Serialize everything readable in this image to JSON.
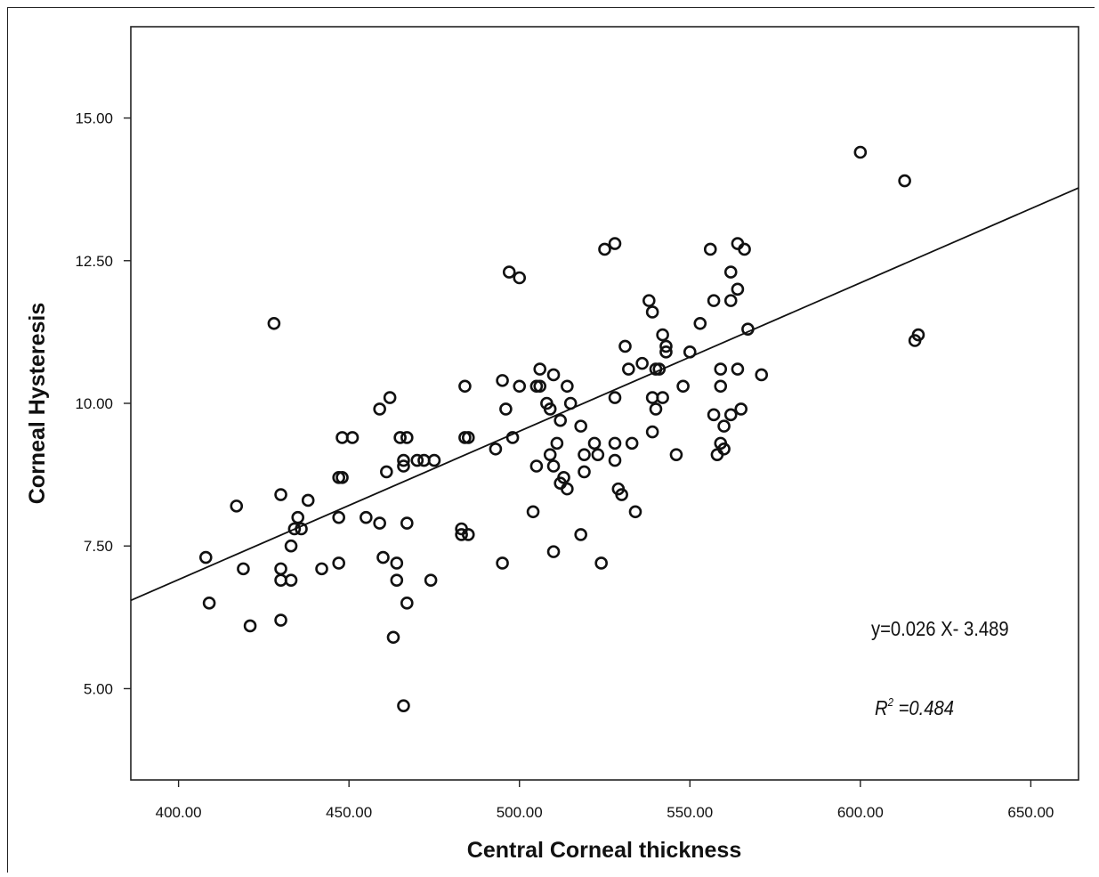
{
  "chart_data": {
    "type": "scatter",
    "xlabel": "Central Corneal thickness",
    "ylabel": "Corneal Hysteresis",
    "xlim": [
      386,
      664
    ],
    "ylim": [
      3.4,
      16.6
    ],
    "x_ticks": [
      400,
      450,
      500,
      550,
      600,
      650
    ],
    "y_ticks": [
      5.0,
      7.5,
      10.0,
      12.5,
      15.0
    ],
    "x_tick_labels": [
      "400.00",
      "450.00",
      "500.00",
      "550.00",
      "600.00",
      "650.00"
    ],
    "y_tick_labels": [
      "5.00",
      "7.50",
      "10.00",
      "12.50",
      "15.00"
    ],
    "grid": false,
    "marker": "open-circle",
    "regression": {
      "slope": 0.026,
      "intercept": -3.489
    },
    "annotations": {
      "equation": "y=0.026 X- 3.489",
      "r2_symbol": "R",
      "r2_sup": "2",
      "r2_value": " =0.484"
    },
    "points": [
      [
        428,
        11.4
      ],
      [
        408,
        7.3
      ],
      [
        409,
        6.5
      ],
      [
        417,
        8.2
      ],
      [
        419,
        7.1
      ],
      [
        421,
        6.1
      ],
      [
        430,
        8.4
      ],
      [
        430,
        7.1
      ],
      [
        430,
        6.9
      ],
      [
        430,
        6.2
      ],
      [
        433,
        6.9
      ],
      [
        433,
        7.5
      ],
      [
        434,
        7.8
      ],
      [
        435,
        8.0
      ],
      [
        436,
        7.8
      ],
      [
        438,
        8.3
      ],
      [
        442,
        7.1
      ],
      [
        447,
        8.0
      ],
      [
        447,
        7.2
      ],
      [
        447,
        8.7
      ],
      [
        448,
        8.7
      ],
      [
        448,
        9.4
      ],
      [
        451,
        9.4
      ],
      [
        455,
        8.0
      ],
      [
        459,
        7.9
      ],
      [
        459,
        9.9
      ],
      [
        460,
        7.3
      ],
      [
        461,
        8.8
      ],
      [
        462,
        10.1
      ],
      [
        463,
        5.9
      ],
      [
        464,
        7.2
      ],
      [
        464,
        6.9
      ],
      [
        465,
        9.4
      ],
      [
        466,
        8.9
      ],
      [
        466,
        9.0
      ],
      [
        466,
        4.7
      ],
      [
        467,
        9.4
      ],
      [
        467,
        7.9
      ],
      [
        467,
        6.5
      ],
      [
        470,
        9.0
      ],
      [
        472,
        9.0
      ],
      [
        474,
        6.9
      ],
      [
        475,
        9.0
      ],
      [
        483,
        7.8
      ],
      [
        483,
        7.7
      ],
      [
        484,
        10.3
      ],
      [
        484,
        9.4
      ],
      [
        485,
        9.4
      ],
      [
        485,
        7.7
      ],
      [
        493,
        9.2
      ],
      [
        495,
        10.4
      ],
      [
        495,
        7.2
      ],
      [
        496,
        9.9
      ],
      [
        497,
        12.3
      ],
      [
        498,
        9.4
      ],
      [
        500,
        12.2
      ],
      [
        500,
        10.3
      ],
      [
        504,
        8.1
      ],
      [
        505,
        10.3
      ],
      [
        505,
        8.9
      ],
      [
        506,
        10.3
      ],
      [
        506,
        10.6
      ],
      [
        508,
        10.0
      ],
      [
        509,
        9.9
      ],
      [
        509,
        9.1
      ],
      [
        510,
        10.5
      ],
      [
        510,
        8.9
      ],
      [
        510,
        7.4
      ],
      [
        511,
        9.3
      ],
      [
        512,
        9.7
      ],
      [
        512,
        8.6
      ],
      [
        513,
        8.7
      ],
      [
        514,
        8.5
      ],
      [
        514,
        10.3
      ],
      [
        515,
        10.0
      ],
      [
        518,
        9.6
      ],
      [
        518,
        7.7
      ],
      [
        519,
        9.1
      ],
      [
        519,
        8.8
      ],
      [
        522,
        9.3
      ],
      [
        523,
        9.1
      ],
      [
        524,
        7.2
      ],
      [
        525,
        12.7
      ],
      [
        528,
        12.8
      ],
      [
        528,
        10.1
      ],
      [
        528,
        9.3
      ],
      [
        528,
        9.0
      ],
      [
        529,
        8.5
      ],
      [
        530,
        8.4
      ],
      [
        531,
        11.0
      ],
      [
        532,
        10.6
      ],
      [
        533,
        9.3
      ],
      [
        534,
        8.1
      ],
      [
        536,
        10.7
      ],
      [
        538,
        11.8
      ],
      [
        539,
        11.6
      ],
      [
        539,
        10.1
      ],
      [
        539,
        9.5
      ],
      [
        540,
        9.9
      ],
      [
        540,
        10.6
      ],
      [
        541,
        10.6
      ],
      [
        542,
        11.2
      ],
      [
        542,
        10.1
      ],
      [
        543,
        11.0
      ],
      [
        543,
        10.9
      ],
      [
        546,
        9.1
      ],
      [
        548,
        10.3
      ],
      [
        550,
        10.9
      ],
      [
        553,
        11.4
      ],
      [
        556,
        12.7
      ],
      [
        557,
        11.8
      ],
      [
        557,
        9.8
      ],
      [
        558,
        9.1
      ],
      [
        559,
        10.6
      ],
      [
        559,
        10.3
      ],
      [
        559,
        9.3
      ],
      [
        560,
        9.6
      ],
      [
        560,
        9.2
      ],
      [
        562,
        12.3
      ],
      [
        562,
        11.8
      ],
      [
        562,
        9.8
      ],
      [
        564,
        12.8
      ],
      [
        564,
        12.0
      ],
      [
        564,
        10.6
      ],
      [
        565,
        9.9
      ],
      [
        566,
        12.7
      ],
      [
        567,
        11.3
      ],
      [
        571,
        10.5
      ],
      [
        600,
        14.4
      ],
      [
        613,
        13.9
      ],
      [
        616,
        11.1
      ],
      [
        617,
        11.2
      ]
    ]
  }
}
